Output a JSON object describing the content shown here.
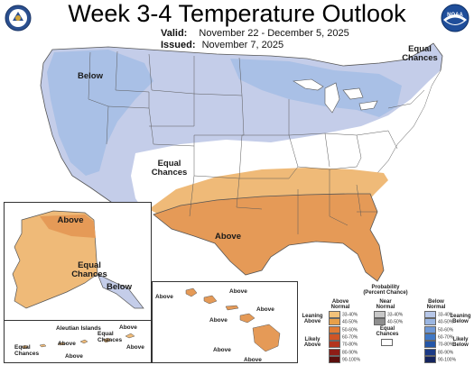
{
  "header": {
    "title": "Week 3-4 Temperature Outlook",
    "valid_label": "Valid:",
    "valid_value": "November 22 - December 5, 2025",
    "issued_label": "Issued:",
    "issued_value": "November 7, 2025"
  },
  "logos": {
    "left": "seal-icon",
    "right": "noaa-logo-icon",
    "right_text": "NOAA"
  },
  "conus_labels": {
    "below": "Below",
    "equal_ne_1": "Equal",
    "equal_ne_2": "Chances",
    "equal_c_1": "Equal",
    "equal_c_2": "Chances",
    "above": "Above"
  },
  "alaska_labels": {
    "above": "Above",
    "equal_1": "Equal",
    "equal_2": "Chances",
    "below": "Below"
  },
  "aleutian_labels": {
    "title": "Aleutian Islands",
    "equal_l_1": "Equal",
    "equal_l_2": "Chances",
    "above_1": "Above",
    "above_2": "Above",
    "equal_r_1": "Equal",
    "equal_r_2": "Chances",
    "above_3": "Above",
    "above_4": "Above"
  },
  "hawaii_labels": [
    "Above",
    "Above",
    "Above",
    "Above",
    "Above",
    "Above"
  ],
  "legend": {
    "title_1": "Probability",
    "title_2": "(Percent Chance)",
    "above_head_1": "Above",
    "above_head_2": "Normal",
    "near_head_1": "Near",
    "near_head_2": "Normal",
    "below_head_1": "Below",
    "below_head_2": "Normal",
    "leaning_above_1": "Leaning",
    "leaning_above_2": "Above",
    "likely_above_1": "Likely",
    "likely_above_2": "Above",
    "leaning_below_1": "Leaning",
    "leaning_below_2": "Below",
    "likely_below_1": "Likely",
    "likely_below_2": "Below",
    "equal_1": "Equal",
    "equal_2": "Chances",
    "above_rows": [
      "33-40%",
      "40-50%",
      "50-60%",
      "60-70%",
      "70-80%",
      "80-90%",
      "90-100%"
    ],
    "near_rows": [
      "33-40%",
      "40-50%"
    ],
    "below_rows": [
      "33-40%",
      "40-50%",
      "50-60%",
      "60-70%",
      "70-80%",
      "80-90%",
      "90-100%"
    ],
    "above_colors": [
      "#f2c27a",
      "#e8a04a",
      "#df7a34",
      "#cf5526",
      "#b3341e",
      "#8e1d16",
      "#5c0f0d"
    ],
    "near_colors": [
      "#c8c8c8",
      "#8e8e8e"
    ],
    "below_colors": [
      "#b7c7e8",
      "#9bb6e2",
      "#6f98d6",
      "#3f78c6",
      "#2456a8",
      "#1b3a86",
      "#14245e"
    ],
    "equal_color": "#ffffff"
  },
  "colors": {
    "below_light": "#c4cde9",
    "below_mid": "#a9c0e6",
    "above_light": "#efba78",
    "above_mid": "#e59a57",
    "above_strong": "#dd8040",
    "equal": "#ffffff",
    "state_lines": "#5a5a5a"
  }
}
